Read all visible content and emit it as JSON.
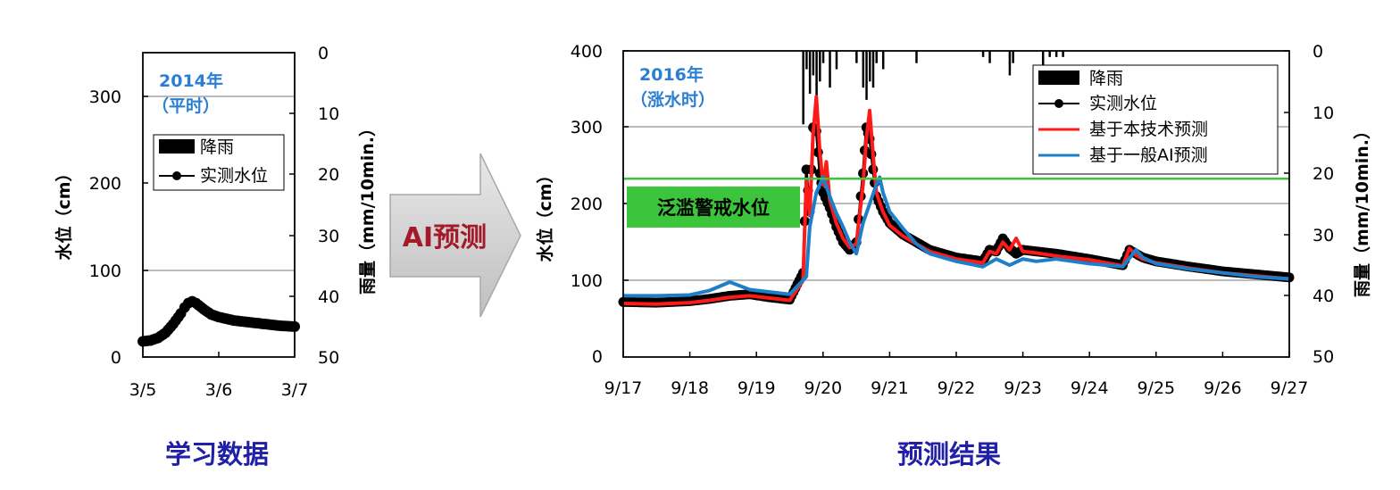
{
  "chart_data": [
    {
      "type": "line",
      "period_label_year": "2014年",
      "period_label_state": "（平时）",
      "ylabel": "水位（cm）",
      "y2label": "雨量（mm/10min.）",
      "xticks": [
        "3/5",
        "3/6",
        "3/7"
      ],
      "yticks": [
        "0",
        "100",
        "200",
        "300"
      ],
      "y2ticks": [
        "0",
        "10",
        "20",
        "30",
        "40",
        "50"
      ],
      "ylim": [
        0,
        350
      ],
      "y2lim": [
        0,
        50
      ],
      "xlim_days": [
        0,
        2
      ],
      "grid": "horizontal at 100 and 300",
      "legend": {
        "position": "center-right",
        "items": [
          "降雨",
          "实测水位"
        ]
      },
      "rainfall_mm": [
        0,
        0,
        0,
        0,
        0,
        0
      ],
      "series": [
        {
          "name": "实测水位",
          "color": "#000000",
          "marker": "circle",
          "x_day": [
            0,
            0.1,
            0.2,
            0.3,
            0.4,
            0.5,
            0.55,
            0.6,
            0.65,
            0.7,
            0.8,
            0.9,
            1.0,
            1.1,
            1.2,
            1.4,
            1.6,
            1.8,
            2.0
          ],
          "values": [
            18,
            19,
            22,
            28,
            38,
            50,
            57,
            62,
            64,
            62,
            55,
            49,
            46,
            44,
            42,
            40,
            38,
            36,
            35
          ]
        }
      ]
    },
    {
      "type": "line",
      "period_label_year": "2016年",
      "period_label_state": "（涨水时）",
      "ylabel": "水位（cm）",
      "y2label": "雨量（mm/10min.）",
      "xticks": [
        "9/17",
        "9/18",
        "9/19",
        "9/20",
        "9/21",
        "9/22",
        "9/23",
        "9/24",
        "9/25",
        "9/26",
        "9/27"
      ],
      "yticks": [
        "0",
        "100",
        "200",
        "300",
        "400"
      ],
      "y2ticks": [
        "0",
        "10",
        "20",
        "30",
        "40",
        "50"
      ],
      "ylim": [
        0,
        400
      ],
      "y2lim": [
        0,
        50
      ],
      "xlim_days": [
        0,
        10
      ],
      "grid": "horizontal at 100, 200 and 300",
      "legend": {
        "position": "top-right",
        "items": [
          "降雨",
          "实测水位",
          "基于本技术预测",
          "基于一般AI预测"
        ]
      },
      "alert_level": {
        "label": "泛滥警戒水位",
        "value": 233,
        "color": "#3cc43c"
      },
      "rainfall": {
        "x_day": [
          2.7,
          2.75,
          2.8,
          2.85,
          2.9,
          2.95,
          3.0,
          3.1,
          3.2,
          3.5,
          3.6,
          3.65,
          3.7,
          3.75,
          3.8,
          3.9,
          4.4,
          5.4,
          5.5,
          5.8,
          5.85,
          6.3,
          6.4,
          6.5,
          6.6
        ],
        "mm": [
          12,
          3,
          7,
          4,
          10,
          5,
          2,
          6,
          3,
          2,
          6,
          8,
          5,
          6,
          2,
          3,
          2,
          1,
          2,
          4,
          2,
          8,
          1,
          1,
          1
        ]
      },
      "series": [
        {
          "name": "实测水位",
          "color": "#000000",
          "marker": "circle",
          "x_day": [
            0,
            0.5,
            1.0,
            1.3,
            1.6,
            1.9,
            2.2,
            2.5,
            2.7,
            2.75,
            2.8,
            2.85,
            2.9,
            2.95,
            3.0,
            3.1,
            3.2,
            3.3,
            3.4,
            3.5,
            3.6,
            3.65,
            3.7,
            3.75,
            3.8,
            3.9,
            4.0,
            4.2,
            4.4,
            4.6,
            5.0,
            5.4,
            5.5,
            5.6,
            5.7,
            5.8,
            5.9,
            6.0,
            6.2,
            6.5,
            7.0,
            7.5,
            7.6,
            7.7,
            7.8,
            8.0,
            8.5,
            9.0,
            9.5,
            10.0
          ],
          "values": [
            72,
            71,
            73,
            76,
            80,
            82,
            78,
            75,
            110,
            245,
            190,
            300,
            295,
            240,
            215,
            195,
            170,
            150,
            140,
            150,
            240,
            300,
            285,
            245,
            210,
            190,
            175,
            160,
            150,
            140,
            130,
            125,
            140,
            138,
            155,
            142,
            135,
            140,
            138,
            135,
            128,
            120,
            140,
            135,
            130,
            125,
            118,
            112,
            108,
            104
          ]
        },
        {
          "name": "基于本技术预测",
          "color": "#ff1a1a",
          "x_day": [
            0,
            0.5,
            1.0,
            1.3,
            1.6,
            1.9,
            2.2,
            2.5,
            2.7,
            2.75,
            2.8,
            2.85,
            2.9,
            2.95,
            3.0,
            3.05,
            3.1,
            3.2,
            3.3,
            3.4,
            3.5,
            3.6,
            3.65,
            3.7,
            3.75,
            3.8,
            3.9,
            4.0,
            4.2,
            4.4,
            4.6,
            5.0,
            5.4,
            5.5,
            5.6,
            5.7,
            5.8,
            5.9,
            6.0,
            6.2,
            6.5,
            7.0,
            7.5,
            7.6,
            7.7,
            7.8,
            8.0,
            8.5,
            9.0,
            9.5,
            10.0
          ],
          "values": [
            70,
            69,
            71,
            74,
            78,
            80,
            77,
            74,
            100,
            230,
            185,
            290,
            340,
            270,
            225,
            255,
            205,
            175,
            155,
            143,
            148,
            225,
            285,
            322,
            265,
            215,
            190,
            172,
            158,
            148,
            138,
            128,
            123,
            138,
            135,
            150,
            140,
            155,
            138,
            136,
            132,
            127,
            119,
            142,
            133,
            128,
            123,
            116,
            110,
            106,
            102
          ]
        },
        {
          "name": "基于一般AI预测",
          "color": "#1e7fc8",
          "x_day": [
            0,
            0.5,
            1.0,
            1.3,
            1.6,
            1.9,
            2.2,
            2.5,
            2.75,
            2.8,
            2.9,
            3.0,
            3.1,
            3.2,
            3.3,
            3.4,
            3.5,
            3.6,
            3.7,
            3.8,
            3.85,
            3.9,
            4.0,
            4.2,
            4.4,
            4.6,
            5.0,
            5.4,
            5.6,
            5.8,
            6.0,
            6.2,
            6.5,
            7.0,
            7.5,
            7.7,
            7.8,
            8.0,
            8.5,
            9.0,
            9.5,
            10.0
          ],
          "values": [
            80,
            80,
            81,
            87,
            98,
            88,
            85,
            82,
            105,
            170,
            215,
            235,
            210,
            188,
            170,
            150,
            135,
            175,
            200,
            225,
            235,
            215,
            190,
            168,
            148,
            135,
            125,
            118,
            128,
            120,
            128,
            125,
            128,
            122,
            118,
            140,
            130,
            122,
            115,
            110,
            105,
            102
          ]
        }
      ]
    }
  ],
  "arrow": {
    "label": "AI预测",
    "color": "#a31a2a"
  },
  "captions": {
    "left": "学习数据",
    "right": "预测结果"
  }
}
